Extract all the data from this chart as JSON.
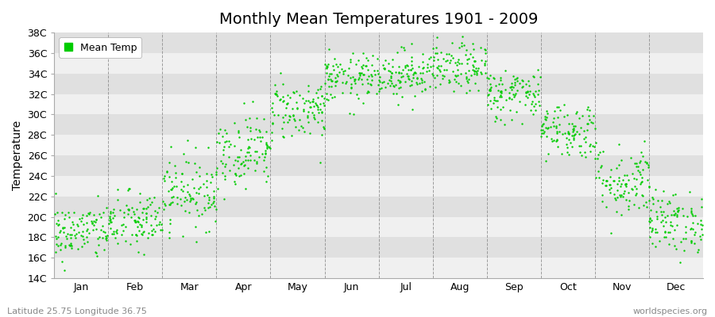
{
  "title": "Monthly Mean Temperatures 1901 - 2009",
  "ylabel": "Temperature",
  "bottom_left_text": "Latitude 25.75 Longitude 36.75",
  "bottom_right_text": "worldspecies.org",
  "legend_label": "Mean Temp",
  "dot_color": "#00cc00",
  "background_color": "#ffffff",
  "plot_bg_light": "#f0f0f0",
  "plot_bg_dark": "#e0e0e0",
  "ylim": [
    14,
    38
  ],
  "ytick_labels": [
    "14C",
    "16C",
    "18C",
    "20C",
    "22C",
    "24C",
    "26C",
    "28C",
    "30C",
    "32C",
    "34C",
    "36C",
    "38C"
  ],
  "ytick_values": [
    14,
    16,
    18,
    20,
    22,
    24,
    26,
    28,
    30,
    32,
    34,
    36,
    38
  ],
  "months": [
    "Jan",
    "Feb",
    "Mar",
    "Apr",
    "May",
    "Jun",
    "Jul",
    "Aug",
    "Sep",
    "Oct",
    "Nov",
    "Dec"
  ],
  "month_means": [
    18.5,
    19.5,
    22.5,
    26.5,
    30.5,
    33.5,
    34.0,
    34.5,
    32.0,
    28.5,
    23.5,
    19.5
  ],
  "month_stds": [
    1.4,
    1.5,
    1.8,
    1.8,
    1.5,
    1.2,
    1.2,
    1.2,
    1.3,
    1.4,
    1.8,
    1.5
  ],
  "n_years": 109,
  "random_seed": 42,
  "title_fontsize": 14,
  "axis_label_fontsize": 10,
  "tick_fontsize": 9,
  "annotation_fontsize": 8
}
